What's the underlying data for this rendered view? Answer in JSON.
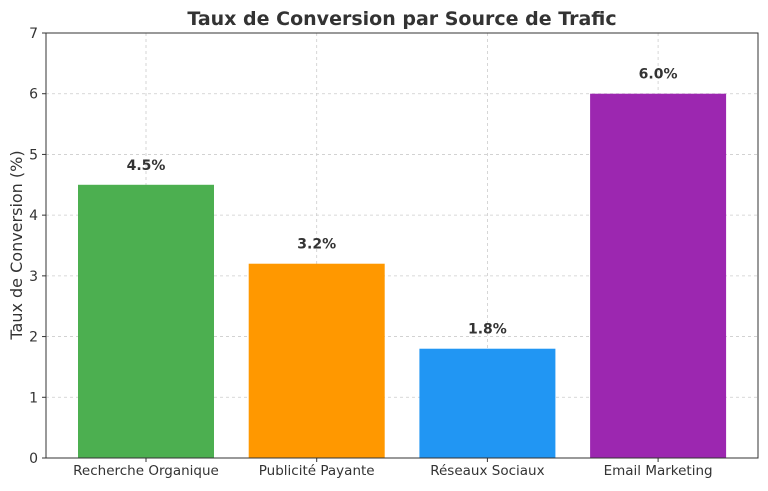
{
  "chart_data": {
    "type": "bar",
    "title": "Taux de Conversion par Source de Trafic",
    "xlabel": "",
    "ylabel": "Taux de Conversion (%)",
    "categories": [
      "Recherche Organique",
      "Publicité Payante",
      "Réseaux Sociaux",
      "Email Marketing"
    ],
    "values": [
      4.5,
      3.2,
      1.8,
      6.0
    ],
    "data_labels": [
      "4.5%",
      "3.2%",
      "1.8%",
      "6.0%"
    ],
    "colors": [
      "#4caf50",
      "#ff9800",
      "#2196f3",
      "#9c27b0"
    ],
    "ylim": [
      0,
      7
    ],
    "yticks": [
      "0",
      "1",
      "2",
      "3",
      "4",
      "5",
      "6",
      "7"
    ],
    "grid": true,
    "legend": "none"
  }
}
